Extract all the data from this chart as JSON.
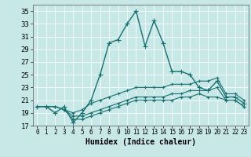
{
  "title": "",
  "xlabel": "Humidex (Indice chaleur)",
  "bg_color": "#c8e8e8",
  "line_color": "#1a7070",
  "xlim": [
    -0.5,
    23.5
  ],
  "ylim": [
    17,
    36
  ],
  "xticks": [
    0,
    1,
    2,
    3,
    4,
    5,
    6,
    7,
    8,
    9,
    10,
    11,
    12,
    13,
    14,
    15,
    16,
    17,
    18,
    19,
    20,
    21,
    22,
    23
  ],
  "yticks": [
    17,
    19,
    21,
    23,
    25,
    27,
    29,
    31,
    33,
    35
  ],
  "series": [
    [
      20.0,
      20.0,
      19.0,
      20.0,
      17.5,
      19.0,
      21.0,
      25.0,
      30.0,
      30.5,
      33.0,
      35.0,
      29.5,
      33.5,
      30.0,
      25.5,
      25.5,
      25.0,
      23.0,
      22.5,
      24.0,
      21.5,
      21.5,
      20.5
    ],
    [
      20.0,
      20.0,
      20.0,
      19.5,
      19.0,
      19.5,
      20.5,
      21.0,
      21.5,
      22.0,
      22.5,
      23.0,
      23.0,
      23.0,
      23.0,
      23.5,
      23.5,
      23.5,
      24.0,
      24.0,
      24.5,
      22.0,
      22.0,
      21.0
    ],
    [
      20.0,
      20.0,
      20.0,
      19.5,
      18.5,
      18.5,
      19.0,
      19.5,
      20.0,
      20.5,
      21.0,
      21.5,
      21.5,
      21.5,
      21.5,
      22.0,
      22.0,
      22.5,
      22.5,
      22.5,
      23.0,
      21.0,
      21.0,
      20.0
    ],
    [
      20.0,
      20.0,
      20.0,
      19.5,
      18.0,
      18.0,
      18.5,
      19.0,
      19.5,
      20.0,
      20.5,
      21.0,
      21.0,
      21.0,
      21.0,
      21.0,
      21.5,
      21.5,
      22.0,
      21.5,
      21.5,
      21.0,
      21.0,
      20.0
    ]
  ],
  "series_styles": [
    {
      "ls": "-",
      "lw": 1.0,
      "ms": 4
    },
    {
      "ls": "-",
      "lw": 0.8,
      "ms": 3
    },
    {
      "ls": "-",
      "lw": 0.8,
      "ms": 3
    },
    {
      "ls": "-",
      "lw": 0.8,
      "ms": 3
    }
  ]
}
